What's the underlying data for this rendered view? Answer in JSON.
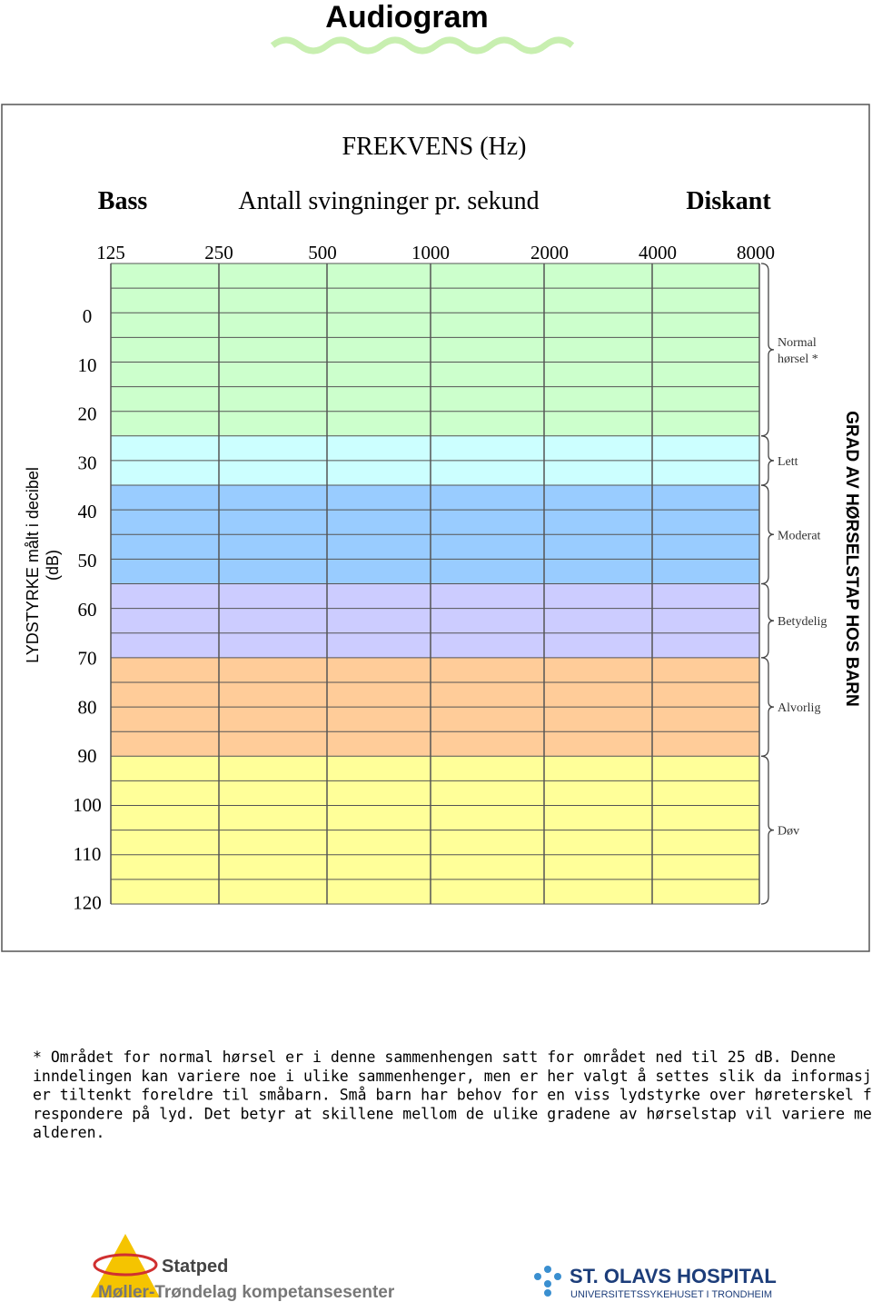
{
  "header": {
    "title": "Audiogram"
  },
  "audiogram": {
    "frequency_title": "FREKVENS (Hz)",
    "bass": "Bass",
    "subtitle": "Antall svingninger pr. sekund",
    "diskant": "Diskant",
    "frequencies": [
      "125",
      "250",
      "500",
      "1000",
      "2000",
      "4000",
      "8000"
    ],
    "levels": [
      "0",
      "10",
      "20",
      "30",
      "40",
      "50",
      "60",
      "70",
      "80",
      "90",
      "100",
      "110",
      "120"
    ],
    "y_axis_label": [
      "LYDSTYRKE målt i decibel",
      "(dB)"
    ],
    "right_label": "GRAD AV HØRSELSTAP HOS BARN",
    "grades": [
      [
        "Normal",
        "hørsel *"
      ],
      [
        "Lett"
      ],
      [
        "Moderat"
      ],
      [
        "Betydelig"
      ],
      [
        "Alvorlig"
      ],
      [
        "Døv"
      ]
    ]
  },
  "footnote": [
    "* Området for normal hørsel er i denne sammenhengen satt for området ned til 25 dB. Denne",
    "inndelingen kan variere noe i ulike sammenhenger, men er her valgt å settes slik da informasjonen",
    "er tiltenkt foreldre til småbarn. Små barn har behov for en viss lydstyrke over høreterskel for å",
    "respondere på lyd. Det betyr at skillene mellom de ulike gradene av hørselstap vil variere med",
    "alderen."
  ],
  "logos": {
    "statped": "Statped",
    "statped_sub": "Møller-Trøndelag kompetansesenter",
    "hospital": "ST. OLAVS HOSPITAL",
    "hospital_sub": "UNIVERSITETSSYKEHUSET I TRONDHEIM"
  }
}
